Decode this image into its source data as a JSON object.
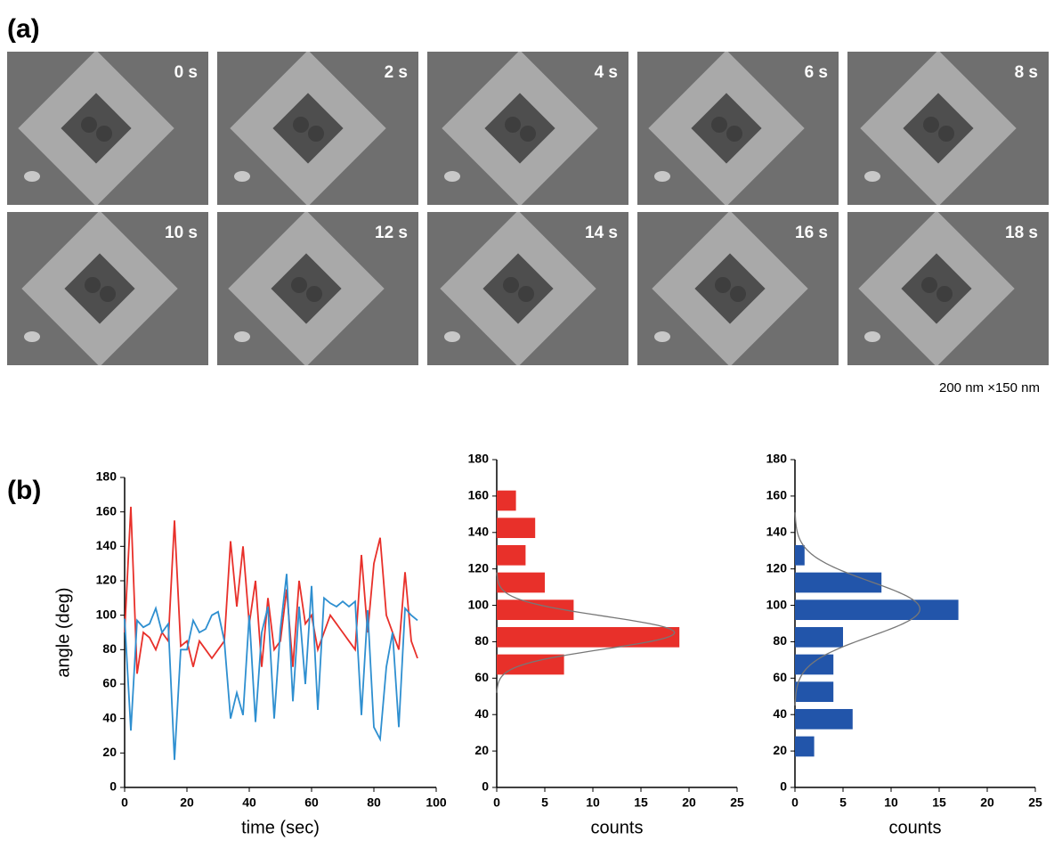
{
  "panels": {
    "a": {
      "label": "(a)",
      "frames": [
        "0 s",
        "2 s",
        "4 s",
        "6 s",
        "8 s",
        "10 s",
        "12 s",
        "14 s",
        "16 s",
        "18 s"
      ],
      "scale": "200 nm ×150 nm"
    },
    "b": {
      "label": "(b)"
    }
  },
  "chart_data": [
    {
      "type": "line",
      "x_label": "time (sec)",
      "y_label": "angle (deg)",
      "x": [
        0,
        2,
        4,
        6,
        8,
        10,
        12,
        14,
        16,
        18,
        20,
        22,
        24,
        26,
        28,
        30,
        32,
        34,
        36,
        38,
        40,
        42,
        44,
        46,
        48,
        50,
        52,
        54,
        56,
        58,
        60,
        62,
        64,
        66,
        68,
        70,
        72,
        74,
        76,
        78,
        80,
        82,
        84,
        86,
        88,
        90,
        92,
        94
      ],
      "series": [
        {
          "color": "#e8302a",
          "values": [
            90,
            163,
            66,
            90,
            87,
            80,
            90,
            85,
            155,
            82,
            85,
            70,
            85,
            80,
            75,
            80,
            85,
            143,
            105,
            140,
            95,
            120,
            70,
            110,
            80,
            85,
            115,
            70,
            120,
            95,
            100,
            80,
            90,
            100,
            95,
            90,
            85,
            80,
            135,
            90,
            130,
            145,
            100,
            90,
            80,
            125,
            85,
            75
          ]
        },
        {
          "color": "#2e8fd0",
          "values": [
            98,
            33,
            97,
            93,
            95,
            104,
            90,
            95,
            16,
            80,
            80,
            97,
            90,
            92,
            100,
            102,
            85,
            40,
            55,
            42,
            100,
            38,
            90,
            105,
            40,
            92,
            124,
            50,
            105,
            60,
            117,
            45,
            110,
            107,
            105,
            108,
            105,
            108,
            42,
            103,
            35,
            28,
            70,
            90,
            35,
            104,
            100,
            97
          ]
        }
      ],
      "xlim": [
        0,
        100
      ],
      "xticks": [
        0,
        20,
        40,
        60,
        80,
        100
      ],
      "ylim": [
        0,
        180
      ],
      "yticks": [
        0,
        20,
        40,
        60,
        80,
        100,
        120,
        140,
        160,
        180
      ]
    },
    {
      "type": "histogram",
      "orientation": "horizontal",
      "x_label": "counts",
      "color": "#e8302a",
      "bins": [
        15,
        30,
        45,
        60,
        75,
        90,
        105,
        120,
        135,
        150,
        165
      ],
      "values": [
        0,
        0,
        0,
        7,
        19,
        8,
        5,
        3,
        4,
        2
      ],
      "fit_curve": {
        "color": "#777777",
        "mean": 85,
        "sd": 9,
        "peak": 18.5
      },
      "xlim": [
        0,
        25
      ],
      "xticks": [
        0,
        5,
        10,
        15,
        20,
        25
      ],
      "ylim": [
        0,
        180
      ],
      "yticks": [
        0,
        20,
        40,
        60,
        80,
        100,
        120,
        140,
        160,
        180
      ]
    },
    {
      "type": "histogram",
      "orientation": "horizontal",
      "x_label": "counts",
      "color": "#2255aa",
      "bins": [
        15,
        30,
        45,
        60,
        75,
        90,
        105,
        120,
        135,
        150,
        165
      ],
      "values": [
        2,
        6,
        4,
        4,
        5,
        17,
        9,
        1,
        0,
        0
      ],
      "fit_curve": {
        "color": "#777777",
        "mean": 98,
        "sd": 15,
        "peak": 13
      },
      "xlim": [
        0,
        25
      ],
      "xticks": [
        0,
        5,
        10,
        15,
        20,
        25
      ],
      "ylim": [
        0,
        180
      ],
      "yticks": [
        0,
        20,
        40,
        60,
        80,
        100,
        120,
        140,
        160,
        180
      ]
    }
  ]
}
